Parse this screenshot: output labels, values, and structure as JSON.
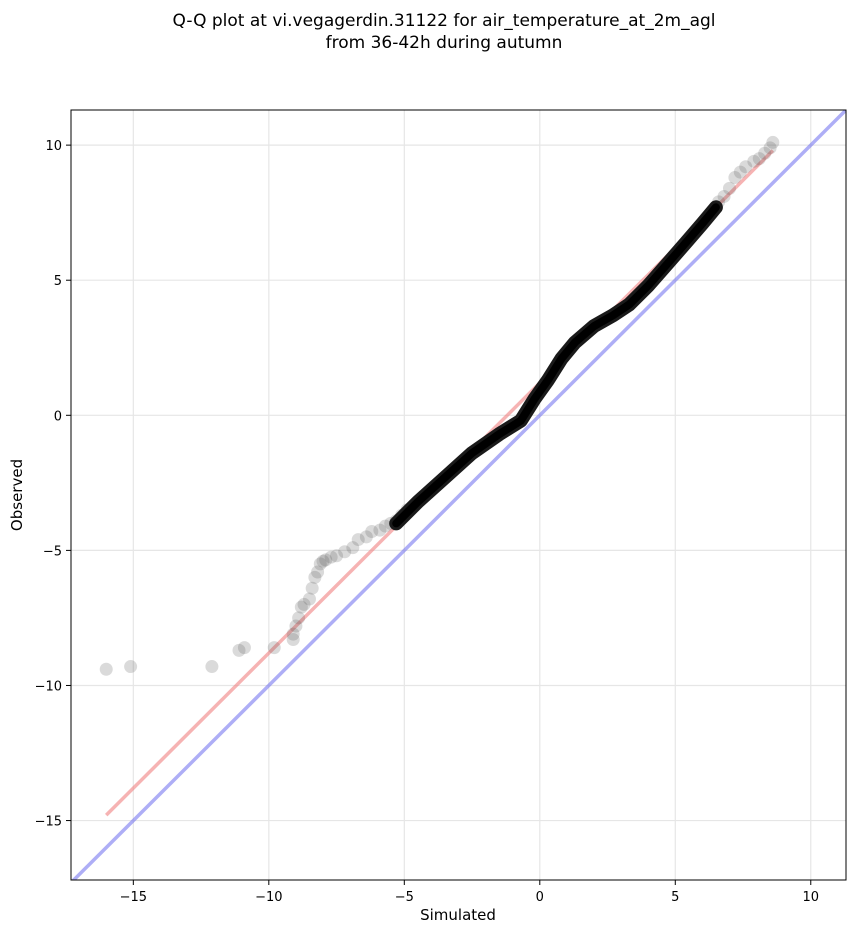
{
  "chart_data": {
    "type": "scatter",
    "title_lines": [
      "Q-Q plot at vi.vegagerdin.31122 for air_temperature_at_2m_agl",
      "from 36-42h during autumn"
    ],
    "xlabel": "Simulated",
    "ylabel": "Observed",
    "xlim": [
      -17.3,
      11.3
    ],
    "ylim": [
      -17.2,
      11.3
    ],
    "xticks": [
      -15,
      -10,
      -5,
      0,
      5,
      10
    ],
    "yticks": [
      -15,
      -10,
      -5,
      0,
      5,
      10
    ],
    "xtick_labels": [
      "−15",
      "−10",
      "−5",
      "0",
      "5",
      "10"
    ],
    "ytick_labels": [
      "−15",
      "−10",
      "−5",
      "0",
      "5",
      "10"
    ],
    "grid": true,
    "colors": {
      "points": "#555555",
      "fit_line": "#f08080",
      "identity_line": "#6b6bef"
    },
    "identity_line": {
      "slope": 1,
      "intercept": 0
    },
    "fit_line": {
      "x": [
        -16.0,
        8.6
      ],
      "y": [
        -14.8,
        9.8
      ]
    },
    "quantile_path": {
      "x": [
        -5.3,
        -4.5,
        -3.5,
        -2.5,
        -1.5,
        -0.7,
        -0.2,
        0.3,
        0.8,
        1.3,
        2.0,
        2.7,
        3.3,
        4.0,
        4.7,
        5.4,
        6.0,
        6.5
      ],
      "y": [
        -4.0,
        -3.2,
        -2.3,
        -1.4,
        -0.7,
        -0.2,
        0.6,
        1.3,
        2.1,
        2.7,
        3.3,
        3.7,
        4.1,
        4.8,
        5.6,
        6.4,
        7.1,
        7.7
      ]
    },
    "points": {
      "x": [
        -16.0,
        -15.1,
        -12.1,
        -11.1,
        -10.9,
        -9.8,
        -9.1,
        -9.1,
        -9.0,
        -8.9,
        -8.8,
        -8.7,
        -8.5,
        -8.4,
        -8.3,
        -8.2,
        -8.1,
        -8.0,
        -7.9,
        -7.7,
        -7.5,
        -7.2,
        -6.9,
        -6.7,
        -6.4,
        -6.2,
        -5.9,
        -5.7,
        -5.5,
        -5.3,
        -5.1,
        -4.9,
        6.6,
        6.8,
        7.0,
        7.2,
        7.4,
        7.6,
        7.9,
        8.1,
        8.3,
        8.5,
        8.6
      ],
      "y": [
        -9.4,
        -9.3,
        -9.3,
        -8.7,
        -8.6,
        -8.6,
        -8.3,
        -8.1,
        -7.8,
        -7.5,
        -7.1,
        -7.0,
        -6.8,
        -6.4,
        -6.0,
        -5.8,
        -5.5,
        -5.4,
        -5.35,
        -5.25,
        -5.2,
        -5.05,
        -4.9,
        -4.6,
        -4.5,
        -4.3,
        -4.25,
        -4.1,
        -4.0,
        -3.9,
        -3.7,
        -3.5,
        7.9,
        8.1,
        8.4,
        8.8,
        9.0,
        9.2,
        9.4,
        9.5,
        9.7,
        9.9,
        10.1
      ]
    }
  }
}
